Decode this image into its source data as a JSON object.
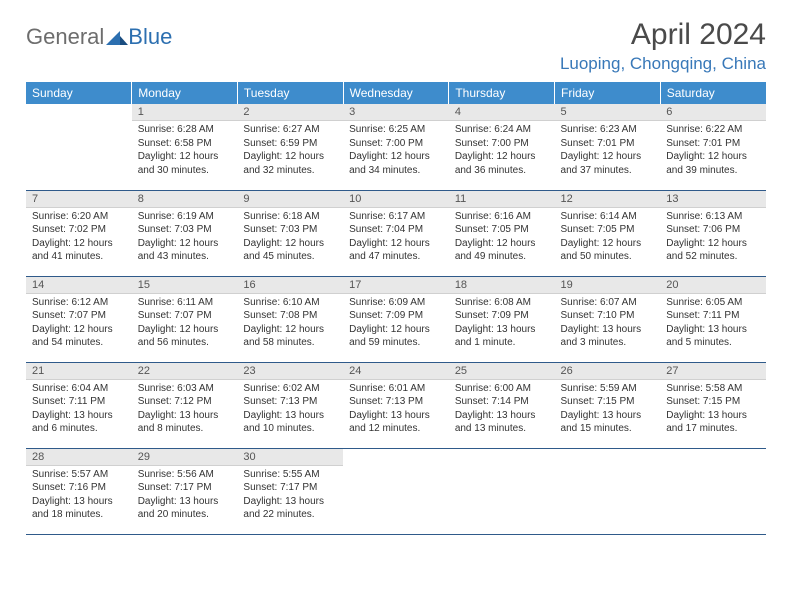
{
  "brand": {
    "text1": "General",
    "text2": "Blue"
  },
  "title": "April 2024",
  "location": "Luoping, Chongqing, China",
  "colors": {
    "header_bg": "#3e8ccc",
    "header_fg": "#ffffff",
    "daynum_bg": "#e8e8e8",
    "rule": "#2f5a8a",
    "brand_gray": "#6d6d6d",
    "brand_blue": "#2c6fb0",
    "location_color": "#3878b8"
  },
  "weekdays": [
    "Sunday",
    "Monday",
    "Tuesday",
    "Wednesday",
    "Thursday",
    "Friday",
    "Saturday"
  ],
  "weeks": [
    [
      {
        "n": "",
        "sr": "",
        "ss": "",
        "dl": "",
        "empty": true
      },
      {
        "n": "1",
        "sr": "Sunrise: 6:28 AM",
        "ss": "Sunset: 6:58 PM",
        "dl": "Daylight: 12 hours and 30 minutes."
      },
      {
        "n": "2",
        "sr": "Sunrise: 6:27 AM",
        "ss": "Sunset: 6:59 PM",
        "dl": "Daylight: 12 hours and 32 minutes."
      },
      {
        "n": "3",
        "sr": "Sunrise: 6:25 AM",
        "ss": "Sunset: 7:00 PM",
        "dl": "Daylight: 12 hours and 34 minutes."
      },
      {
        "n": "4",
        "sr": "Sunrise: 6:24 AM",
        "ss": "Sunset: 7:00 PM",
        "dl": "Daylight: 12 hours and 36 minutes."
      },
      {
        "n": "5",
        "sr": "Sunrise: 6:23 AM",
        "ss": "Sunset: 7:01 PM",
        "dl": "Daylight: 12 hours and 37 minutes."
      },
      {
        "n": "6",
        "sr": "Sunrise: 6:22 AM",
        "ss": "Sunset: 7:01 PM",
        "dl": "Daylight: 12 hours and 39 minutes."
      }
    ],
    [
      {
        "n": "7",
        "sr": "Sunrise: 6:20 AM",
        "ss": "Sunset: 7:02 PM",
        "dl": "Daylight: 12 hours and 41 minutes."
      },
      {
        "n": "8",
        "sr": "Sunrise: 6:19 AM",
        "ss": "Sunset: 7:03 PM",
        "dl": "Daylight: 12 hours and 43 minutes."
      },
      {
        "n": "9",
        "sr": "Sunrise: 6:18 AM",
        "ss": "Sunset: 7:03 PM",
        "dl": "Daylight: 12 hours and 45 minutes."
      },
      {
        "n": "10",
        "sr": "Sunrise: 6:17 AM",
        "ss": "Sunset: 7:04 PM",
        "dl": "Daylight: 12 hours and 47 minutes."
      },
      {
        "n": "11",
        "sr": "Sunrise: 6:16 AM",
        "ss": "Sunset: 7:05 PM",
        "dl": "Daylight: 12 hours and 49 minutes."
      },
      {
        "n": "12",
        "sr": "Sunrise: 6:14 AM",
        "ss": "Sunset: 7:05 PM",
        "dl": "Daylight: 12 hours and 50 minutes."
      },
      {
        "n": "13",
        "sr": "Sunrise: 6:13 AM",
        "ss": "Sunset: 7:06 PM",
        "dl": "Daylight: 12 hours and 52 minutes."
      }
    ],
    [
      {
        "n": "14",
        "sr": "Sunrise: 6:12 AM",
        "ss": "Sunset: 7:07 PM",
        "dl": "Daylight: 12 hours and 54 minutes."
      },
      {
        "n": "15",
        "sr": "Sunrise: 6:11 AM",
        "ss": "Sunset: 7:07 PM",
        "dl": "Daylight: 12 hours and 56 minutes."
      },
      {
        "n": "16",
        "sr": "Sunrise: 6:10 AM",
        "ss": "Sunset: 7:08 PM",
        "dl": "Daylight: 12 hours and 58 minutes."
      },
      {
        "n": "17",
        "sr": "Sunrise: 6:09 AM",
        "ss": "Sunset: 7:09 PM",
        "dl": "Daylight: 12 hours and 59 minutes."
      },
      {
        "n": "18",
        "sr": "Sunrise: 6:08 AM",
        "ss": "Sunset: 7:09 PM",
        "dl": "Daylight: 13 hours and 1 minute."
      },
      {
        "n": "19",
        "sr": "Sunrise: 6:07 AM",
        "ss": "Sunset: 7:10 PM",
        "dl": "Daylight: 13 hours and 3 minutes."
      },
      {
        "n": "20",
        "sr": "Sunrise: 6:05 AM",
        "ss": "Sunset: 7:11 PM",
        "dl": "Daylight: 13 hours and 5 minutes."
      }
    ],
    [
      {
        "n": "21",
        "sr": "Sunrise: 6:04 AM",
        "ss": "Sunset: 7:11 PM",
        "dl": "Daylight: 13 hours and 6 minutes."
      },
      {
        "n": "22",
        "sr": "Sunrise: 6:03 AM",
        "ss": "Sunset: 7:12 PM",
        "dl": "Daylight: 13 hours and 8 minutes."
      },
      {
        "n": "23",
        "sr": "Sunrise: 6:02 AM",
        "ss": "Sunset: 7:13 PM",
        "dl": "Daylight: 13 hours and 10 minutes."
      },
      {
        "n": "24",
        "sr": "Sunrise: 6:01 AM",
        "ss": "Sunset: 7:13 PM",
        "dl": "Daylight: 13 hours and 12 minutes."
      },
      {
        "n": "25",
        "sr": "Sunrise: 6:00 AM",
        "ss": "Sunset: 7:14 PM",
        "dl": "Daylight: 13 hours and 13 minutes."
      },
      {
        "n": "26",
        "sr": "Sunrise: 5:59 AM",
        "ss": "Sunset: 7:15 PM",
        "dl": "Daylight: 13 hours and 15 minutes."
      },
      {
        "n": "27",
        "sr": "Sunrise: 5:58 AM",
        "ss": "Sunset: 7:15 PM",
        "dl": "Daylight: 13 hours and 17 minutes."
      }
    ],
    [
      {
        "n": "28",
        "sr": "Sunrise: 5:57 AM",
        "ss": "Sunset: 7:16 PM",
        "dl": "Daylight: 13 hours and 18 minutes."
      },
      {
        "n": "29",
        "sr": "Sunrise: 5:56 AM",
        "ss": "Sunset: 7:17 PM",
        "dl": "Daylight: 13 hours and 20 minutes."
      },
      {
        "n": "30",
        "sr": "Sunrise: 5:55 AM",
        "ss": "Sunset: 7:17 PM",
        "dl": "Daylight: 13 hours and 22 minutes."
      },
      {
        "n": "",
        "sr": "",
        "ss": "",
        "dl": "",
        "empty": true
      },
      {
        "n": "",
        "sr": "",
        "ss": "",
        "dl": "",
        "empty": true
      },
      {
        "n": "",
        "sr": "",
        "ss": "",
        "dl": "",
        "empty": true
      },
      {
        "n": "",
        "sr": "",
        "ss": "",
        "dl": "",
        "empty": true
      }
    ]
  ]
}
